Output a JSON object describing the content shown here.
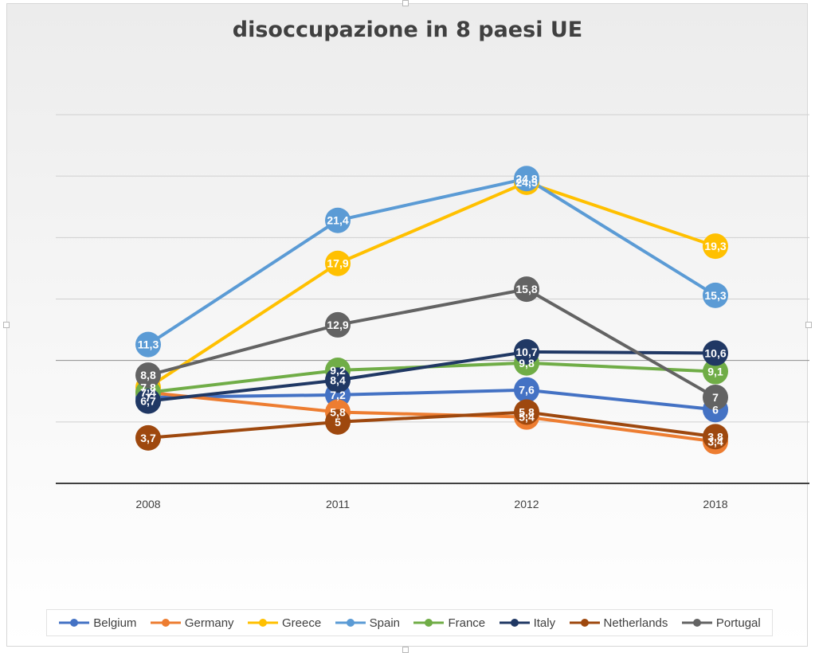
{
  "chart_data": {
    "type": "line",
    "title": "disoccupazione in 8 paesi UE",
    "categories": [
      "2008",
      "2011",
      "2012",
      "2018"
    ],
    "ylim": [
      0,
      30
    ],
    "grid": true,
    "legend_position": "bottom",
    "data_labels": true,
    "series": [
      {
        "name": "Belgium",
        "color": "#4472C4",
        "values": [
          7,
          7.2,
          7.6,
          6
        ],
        "labels": [
          "7",
          "7,2",
          "7,6",
          "6"
        ]
      },
      {
        "name": "Germany",
        "color": "#ED7D31",
        "values": [
          7.4,
          5.8,
          5.4,
          3.4
        ],
        "labels": [
          "7,4",
          "5,8",
          "5,4",
          "3,4"
        ]
      },
      {
        "name": "Greece",
        "color": "#FFC000",
        "values": [
          7.8,
          17.9,
          24.5,
          19.3
        ],
        "labels": [
          "7,8",
          "17,9",
          "24,5",
          "19,3"
        ]
      },
      {
        "name": "Spain",
        "color": "#5B9BD5",
        "values": [
          11.3,
          21.4,
          24.8,
          15.3
        ],
        "labels": [
          "11,3",
          "21,4",
          "24,8",
          "15,3"
        ]
      },
      {
        "name": "France",
        "color": "#70AD47",
        "values": [
          7.4,
          9.2,
          9.8,
          9.1
        ],
        "labels": [
          "7,4",
          "9,2",
          "9,8",
          "9,1"
        ]
      },
      {
        "name": "Italy",
        "color": "#203864",
        "values": [
          6.7,
          8.4,
          10.7,
          10.6
        ],
        "labels": [
          "6,7",
          "8,4",
          "10,7",
          "10,6"
        ]
      },
      {
        "name": "Netherlands",
        "color": "#9E480E",
        "values": [
          3.7,
          5,
          5.8,
          3.8
        ],
        "labels": [
          "3,7",
          "5",
          "5,8",
          "3,8"
        ]
      },
      {
        "name": "Portugal",
        "color": "#636363",
        "values": [
          8.8,
          12.9,
          15.8,
          7
        ],
        "labels": [
          "8,8",
          "12,9",
          "15,8",
          "7"
        ]
      }
    ]
  }
}
